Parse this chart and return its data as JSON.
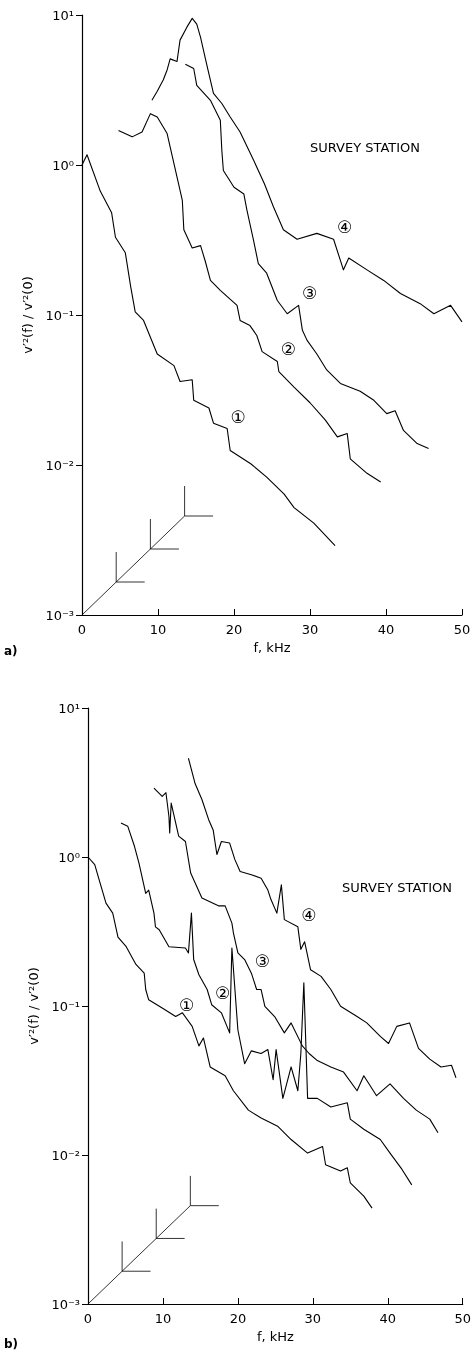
{
  "chart_data": [
    {
      "type": "line",
      "xlabel": "f, kHz",
      "ylabel": "v′²(f) / v′²(0)",
      "log": "y",
      "xlim": [
        0,
        50
      ],
      "xticks": [
        0,
        10,
        20,
        30,
        40,
        50
      ],
      "ylim": [
        0.001,
        10
      ],
      "yticks": [
        {
          "value": 0.001,
          "label": "10⁻³"
        },
        {
          "value": 0.01,
          "label": "10⁻²"
        },
        {
          "value": 0.1,
          "label": "10⁻¹"
        },
        {
          "value": 1,
          "label": "10⁰"
        },
        {
          "value": 10,
          "label": "10¹"
        }
      ],
      "series": [
        {
          "name": "①",
          "color": "#000000",
          "x": [
            0,
            0.66,
            2.4,
            3.9,
            4.4,
            5.7,
            6.4,
            7.0,
            8.1,
            9.9,
            12.1,
            12.9,
            14.5,
            14.7,
            16.7,
            17.3,
            19.1,
            19.5,
            22.2,
            24.3,
            26.6,
            27.9,
            30.5,
            33.3
          ],
          "values": [
            1.0,
            1.17,
            0.67,
            0.48,
            0.33,
            0.26,
            0.155,
            0.105,
            0.092,
            0.055,
            0.046,
            0.036,
            0.037,
            0.027,
            0.024,
            0.019,
            0.0175,
            0.0125,
            0.0102,
            0.0083,
            0.0064,
            0.0052,
            0.0041,
            0.0029
          ]
        },
        {
          "name": "②",
          "color": "#000000",
          "x": [
            4.8,
            6.6,
            7.9,
            9.0,
            9.9,
            11.2,
            12.1,
            13.2,
            13.4,
            14.5,
            15.6,
            16.2,
            16.9,
            18.2,
            20.4,
            20.8,
            22.1,
            23.0,
            23.7,
            25.7,
            25.9,
            27.9,
            30.0,
            32.0,
            33.6,
            34.9,
            35.3,
            37.5,
            39.3
          ],
          "values": [
            1.7,
            1.54,
            1.66,
            2.2,
            2.09,
            1.62,
            1.02,
            0.58,
            0.37,
            0.28,
            0.29,
            0.23,
            0.17,
            0.146,
            0.116,
            0.092,
            0.085,
            0.073,
            0.057,
            0.049,
            0.042,
            0.033,
            0.026,
            0.02,
            0.0154,
            0.0162,
            0.011,
            0.0088,
            0.0077
          ]
        },
        {
          "name": "③",
          "color": "#000000",
          "x": [
            13.6,
            14.7,
            15.1,
            16.9,
            18.2,
            18.4,
            18.6,
            20.0,
            21.3,
            21.7,
            22.6,
            23.2,
            24.3,
            25.7,
            27.0,
            28.5,
            29.0,
            29.6,
            30.9,
            32.2,
            34.0,
            36.6,
            38.4,
            40.1,
            41.2,
            42.3,
            44.1,
            45.6
          ],
          "values": [
            4.7,
            4.4,
            3.4,
            2.7,
            1.99,
            1.25,
            0.92,
            0.71,
            0.64,
            0.5,
            0.31,
            0.22,
            0.19,
            0.125,
            0.102,
            0.116,
            0.079,
            0.068,
            0.055,
            0.043,
            0.035,
            0.031,
            0.027,
            0.022,
            0.023,
            0.017,
            0.0139,
            0.0129
          ]
        },
        {
          "name": "④",
          "color": "#000000",
          "x": [
            9.2,
            9.9,
            10.7,
            11.2,
            11.6,
            12.5,
            12.9,
            13.8,
            14.5,
            15.1,
            15.6,
            16.4,
            17.3,
            18.4,
            19.5,
            20.8,
            22.6,
            24.0,
            25.2,
            26.5,
            28.3,
            30.9,
            33.1,
            34.4,
            35.1,
            37.5,
            39.7,
            41.9,
            44.5,
            46.3,
            48.5,
            50
          ],
          "values": [
            2.7,
            3.1,
            3.7,
            4.3,
            5.1,
            4.9,
            6.8,
            8.3,
            9.5,
            8.7,
            7.1,
            4.7,
            3.0,
            2.57,
            2.09,
            1.66,
            1.07,
            0.75,
            0.525,
            0.37,
            0.32,
            0.35,
            0.32,
            0.2,
            0.24,
            0.2,
            0.17,
            0.139,
            0.119,
            0.102,
            0.116,
            0.09
          ]
        }
      ],
      "annotations": [
        "SURVEY STATION",
        "a)"
      ]
    },
    {
      "type": "line",
      "xlabel": "f, kHz",
      "ylabel": "v′²(f) / v′²(0)",
      "log": "y",
      "xlim": [
        0,
        50
      ],
      "xticks": [
        0,
        10,
        20,
        30,
        40,
        50
      ],
      "ylim": [
        0.001,
        10
      ],
      "yticks": [
        {
          "value": 0.001,
          "label": "10⁻³"
        },
        {
          "value": 0.01,
          "label": "10⁻²"
        },
        {
          "value": 0.1,
          "label": "10⁻¹"
        },
        {
          "value": 1,
          "label": "10⁰"
        },
        {
          "value": 10,
          "label": "10¹"
        }
      ],
      "series": [
        {
          "name": "①",
          "color": "#000000",
          "x": [
            0,
            0.9,
            1.5,
            2.4,
            3.3,
            4.0,
            5.1,
            6.4,
            7.5,
            7.7,
            8.1,
            9.9,
            11.7,
            12.6,
            13.9,
            14.8,
            15.4,
            16.3,
            18.3,
            19.4,
            21.4,
            23.1,
            25.3,
            27.1,
            29.3,
            31.3,
            31.7,
            33.7,
            34.6,
            35.0,
            36.8,
            37.9
          ],
          "values": [
            1.0,
            0.89,
            0.7,
            0.49,
            0.42,
            0.29,
            0.25,
            0.19,
            0.166,
            0.129,
            0.11,
            0.097,
            0.085,
            0.09,
            0.073,
            0.054,
            0.061,
            0.039,
            0.034,
            0.027,
            0.02,
            0.0177,
            0.0156,
            0.0127,
            0.0103,
            0.0114,
            0.0086,
            0.0078,
            0.0082,
            0.0065,
            0.0053,
            0.0044
          ]
        },
        {
          "name": "②",
          "color": "#000000",
          "x": [
            4.4,
            5.3,
            6.2,
            6.8,
            7.7,
            8.1,
            8.8,
            9.0,
            9.5,
            10.8,
            13.0,
            13.4,
            13.8,
            14.1,
            14.8,
            15.9,
            16.5,
            17.8,
            18.9,
            19.2,
            20.0,
            20.9,
            21.8,
            23.1,
            24.0,
            24.7,
            25.1,
            26.0,
            27.1,
            28.0,
            28.4,
            28.8,
            29.3,
            30.6,
            32.4,
            34.6,
            35.0,
            36.8,
            39.0,
            40.3,
            41.9,
            43.2
          ],
          "values": [
            1.69,
            1.61,
            1.18,
            0.91,
            0.57,
            0.6,
            0.42,
            0.34,
            0.325,
            0.25,
            0.245,
            0.227,
            0.42,
            0.205,
            0.162,
            0.129,
            0.102,
            0.09,
            0.066,
            0.245,
            0.069,
            0.041,
            0.05,
            0.048,
            0.051,
            0.032,
            0.051,
            0.024,
            0.039,
            0.027,
            0.048,
            0.143,
            0.024,
            0.024,
            0.021,
            0.0224,
            0.0174,
            0.0149,
            0.0127,
            0.0103,
            0.008,
            0.0063
          ]
        },
        {
          "name": "③",
          "color": "#000000",
          "x": [
            8.8,
            9.9,
            10.4,
            10.8,
            10.9,
            11.1,
            12.1,
            13.0,
            13.7,
            14.3,
            15.2,
            17.4,
            18.3,
            19.2,
            19.4,
            20.0,
            20.9,
            21.8,
            22.5,
            23.1,
            23.6,
            24.9,
            26.2,
            27.1,
            28.6,
            29.5,
            30.6,
            32.4,
            34.1,
            35.9,
            36.8,
            38.5,
            40.3,
            42.1,
            43.8,
            45.6,
            46.7
          ],
          "values": [
            2.9,
            2.55,
            2.7,
            1.87,
            1.45,
            2.3,
            1.38,
            1.27,
            0.78,
            0.67,
            0.53,
            0.47,
            0.47,
            0.36,
            0.31,
            0.227,
            0.205,
            0.166,
            0.129,
            0.129,
            0.0995,
            0.085,
            0.066,
            0.077,
            0.054,
            0.048,
            0.043,
            0.039,
            0.036,
            0.027,
            0.034,
            0.025,
            0.03,
            0.024,
            0.02,
            0.0174,
            0.0141
          ]
        },
        {
          "name": "④",
          "color": "#000000",
          "x": [
            13.4,
            14.3,
            15.2,
            16.1,
            16.7,
            17.2,
            17.8,
            18.9,
            19.6,
            20.3,
            21.8,
            23.1,
            24.0,
            24.4,
            25.2,
            25.8,
            26.2,
            28.0,
            28.4,
            28.9,
            29.7,
            31.1,
            32.4,
            33.7,
            35.9,
            37.2,
            39.0,
            40.1,
            41.2,
            42.9,
            44.1,
            45.6,
            47.1,
            48.5,
            49.1
          ],
          "values": [
            4.6,
            3.1,
            2.43,
            1.78,
            1.52,
            1.04,
            1.27,
            1.24,
            0.96,
            0.8,
            0.76,
            0.72,
            0.6,
            0.52,
            0.42,
            0.65,
            0.38,
            0.34,
            0.24,
            0.27,
            0.175,
            0.158,
            0.129,
            0.0995,
            0.085,
            0.077,
            0.0625,
            0.056,
            0.073,
            0.077,
            0.052,
            0.044,
            0.039,
            0.04,
            0.033
          ]
        }
      ],
      "annotations": [
        "SURVEY STATION",
        "b)"
      ]
    }
  ]
}
